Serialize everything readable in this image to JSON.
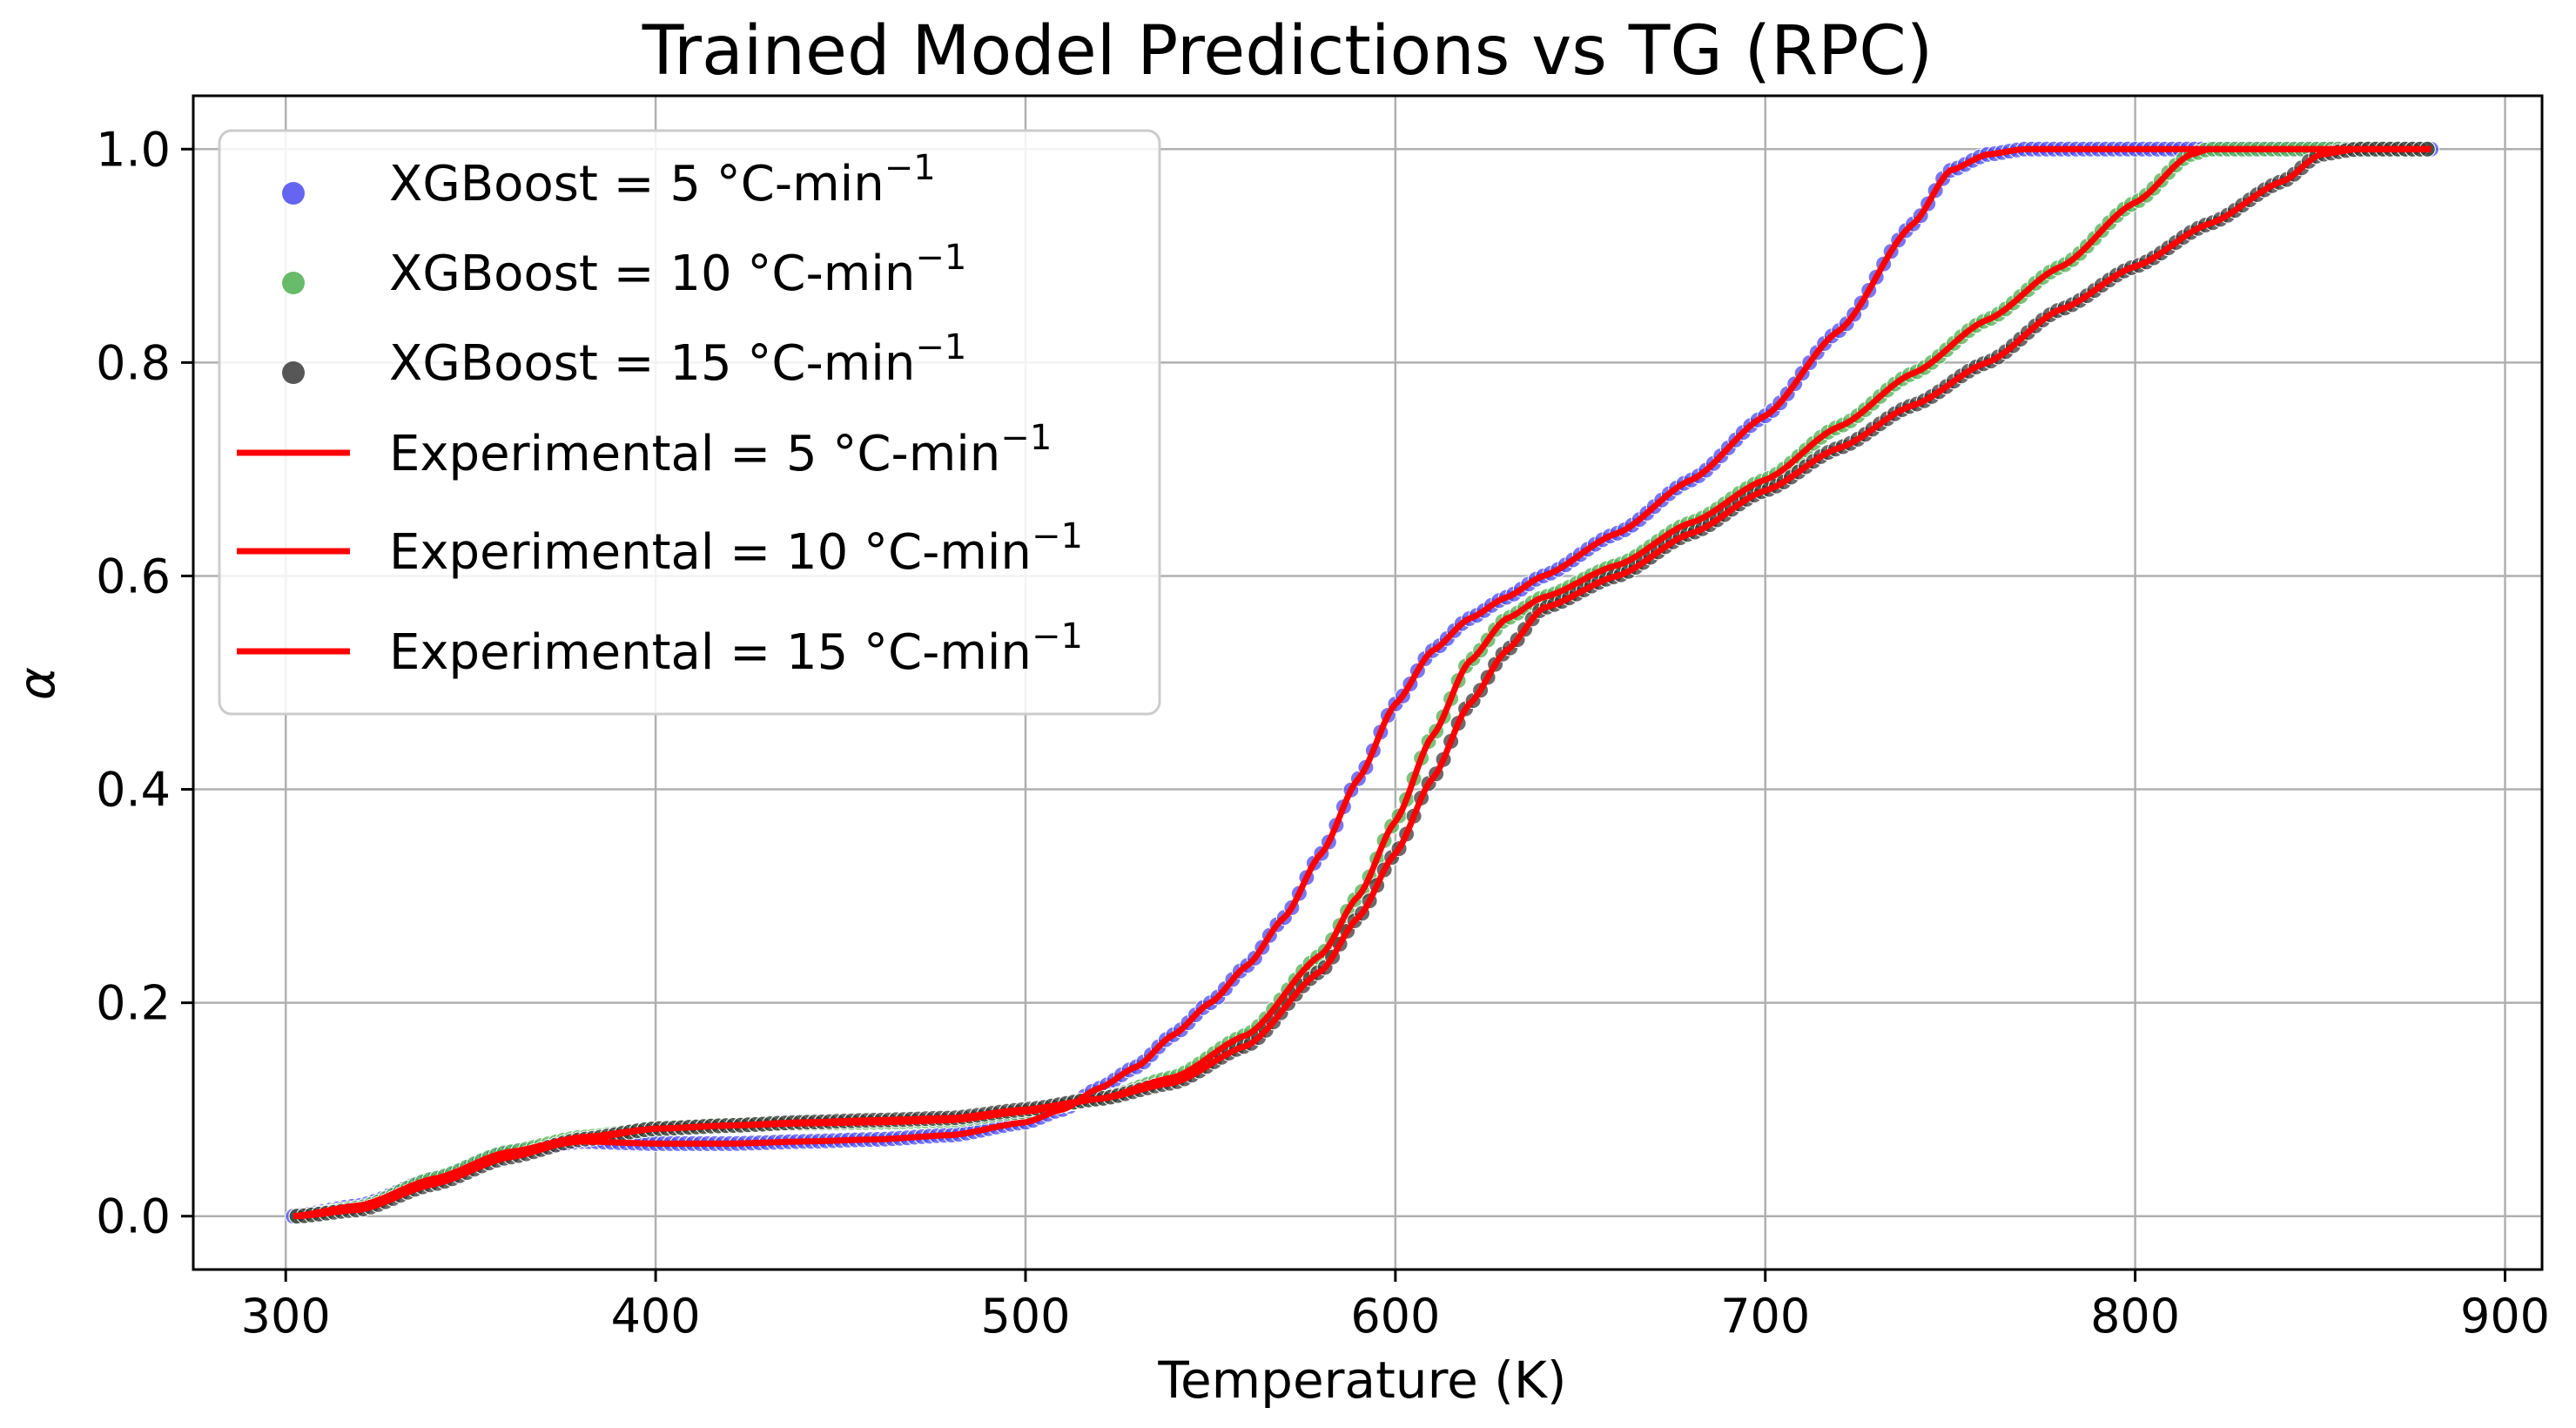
{
  "chart_data": {
    "type": "scatter",
    "title": "Trained Model Predictions vs TG (RPC)",
    "xlabel": "Temperature (K)",
    "ylabel": "α",
    "xlim": [
      275,
      910
    ],
    "ylim": [
      -0.05,
      1.05
    ],
    "x_ticks": [
      300,
      400,
      500,
      600,
      700,
      800,
      900
    ],
    "y_ticks": [
      0.0,
      0.2,
      0.4,
      0.6,
      0.8,
      1.0
    ],
    "x_tick_labels": [
      "300",
      "400",
      "500",
      "600",
      "700",
      "800",
      "900"
    ],
    "y_tick_labels": [
      "0.0",
      "0.2",
      "0.4",
      "0.6",
      "0.8",
      "1.0"
    ],
    "grid": true,
    "legend_position": "top-left",
    "series": [
      {
        "name": "XGBoost = 5 °C-min",
        "name_sup": "−1",
        "kind": "scatter",
        "color": "#4a4af0",
        "points": [
          [
            302,
            0.0
          ],
          [
            320,
            0.01
          ],
          [
            340,
            0.035
          ],
          [
            360,
            0.06
          ],
          [
            380,
            0.07
          ],
          [
            400,
            0.068
          ],
          [
            420,
            0.068
          ],
          [
            440,
            0.07
          ],
          [
            460,
            0.072
          ],
          [
            480,
            0.076
          ],
          [
            500,
            0.088
          ],
          [
            510,
            0.1
          ],
          [
            520,
            0.12
          ],
          [
            530,
            0.14
          ],
          [
            540,
            0.17
          ],
          [
            550,
            0.2
          ],
          [
            560,
            0.235
          ],
          [
            570,
            0.28
          ],
          [
            580,
            0.34
          ],
          [
            590,
            0.41
          ],
          [
            600,
            0.48
          ],
          [
            610,
            0.53
          ],
          [
            620,
            0.56
          ],
          [
            630,
            0.58
          ],
          [
            640,
            0.6
          ],
          [
            660,
            0.64
          ],
          [
            680,
            0.69
          ],
          [
            700,
            0.75
          ],
          [
            720,
            0.83
          ],
          [
            740,
            0.93
          ],
          [
            750,
            0.98
          ],
          [
            760,
            0.995
          ],
          [
            770,
            1.0
          ],
          [
            790,
            1.0
          ],
          [
            810,
            1.0
          ],
          [
            830,
            1.0
          ],
          [
            850,
            1.0
          ],
          [
            870,
            1.0
          ],
          [
            880,
            1.0
          ]
        ]
      },
      {
        "name": "XGBoost = 10 °C-min",
        "name_sup": "−1",
        "kind": "scatter",
        "color": "#4caf50",
        "points": [
          [
            303,
            0.0
          ],
          [
            320,
            0.008
          ],
          [
            340,
            0.035
          ],
          [
            360,
            0.06
          ],
          [
            380,
            0.074
          ],
          [
            400,
            0.082
          ],
          [
            420,
            0.085
          ],
          [
            440,
            0.087
          ],
          [
            460,
            0.088
          ],
          [
            480,
            0.09
          ],
          [
            500,
            0.098
          ],
          [
            520,
            0.11
          ],
          [
            540,
            0.13
          ],
          [
            560,
            0.17
          ],
          [
            580,
            0.245
          ],
          [
            590,
            0.3
          ],
          [
            600,
            0.37
          ],
          [
            610,
            0.45
          ],
          [
            620,
            0.52
          ],
          [
            630,
            0.56
          ],
          [
            640,
            0.58
          ],
          [
            660,
            0.61
          ],
          [
            680,
            0.65
          ],
          [
            700,
            0.69
          ],
          [
            720,
            0.74
          ],
          [
            740,
            0.79
          ],
          [
            760,
            0.84
          ],
          [
            780,
            0.89
          ],
          [
            800,
            0.95
          ],
          [
            815,
            0.995
          ],
          [
            820,
            1.0
          ],
          [
            840,
            1.0
          ],
          [
            860,
            1.0
          ],
          [
            880,
            1.0
          ]
        ]
      },
      {
        "name": "XGBoost = 15 °C-min",
        "name_sup": "−1",
        "kind": "scatter",
        "color": "#3a3a3a",
        "points": [
          [
            303,
            0.0
          ],
          [
            320,
            0.006
          ],
          [
            340,
            0.03
          ],
          [
            360,
            0.055
          ],
          [
            380,
            0.072
          ],
          [
            400,
            0.082
          ],
          [
            420,
            0.085
          ],
          [
            440,
            0.088
          ],
          [
            460,
            0.09
          ],
          [
            480,
            0.092
          ],
          [
            500,
            0.1
          ],
          [
            520,
            0.11
          ],
          [
            540,
            0.125
          ],
          [
            560,
            0.16
          ],
          [
            580,
            0.23
          ],
          [
            590,
            0.28
          ],
          [
            600,
            0.34
          ],
          [
            610,
            0.41
          ],
          [
            620,
            0.48
          ],
          [
            630,
            0.53
          ],
          [
            640,
            0.57
          ],
          [
            660,
            0.6
          ],
          [
            680,
            0.64
          ],
          [
            700,
            0.68
          ],
          [
            720,
            0.72
          ],
          [
            740,
            0.76
          ],
          [
            760,
            0.8
          ],
          [
            780,
            0.85
          ],
          [
            800,
            0.89
          ],
          [
            820,
            0.93
          ],
          [
            840,
            0.97
          ],
          [
            850,
            0.995
          ],
          [
            860,
            1.0
          ],
          [
            870,
            1.0
          ],
          [
            880,
            1.0
          ]
        ]
      },
      {
        "name": "Experimental = 5 °C-min",
        "name_sup": "−1",
        "kind": "line",
        "color": "#ff0000",
        "ref": 0
      },
      {
        "name": "Experimental = 10 °C-min",
        "name_sup": "−1",
        "kind": "line",
        "color": "#ff0000",
        "ref": 1
      },
      {
        "name": "Experimental = 15 °C-min",
        "name_sup": "−1",
        "kind": "line",
        "color": "#ff0000",
        "ref": 2
      }
    ]
  }
}
